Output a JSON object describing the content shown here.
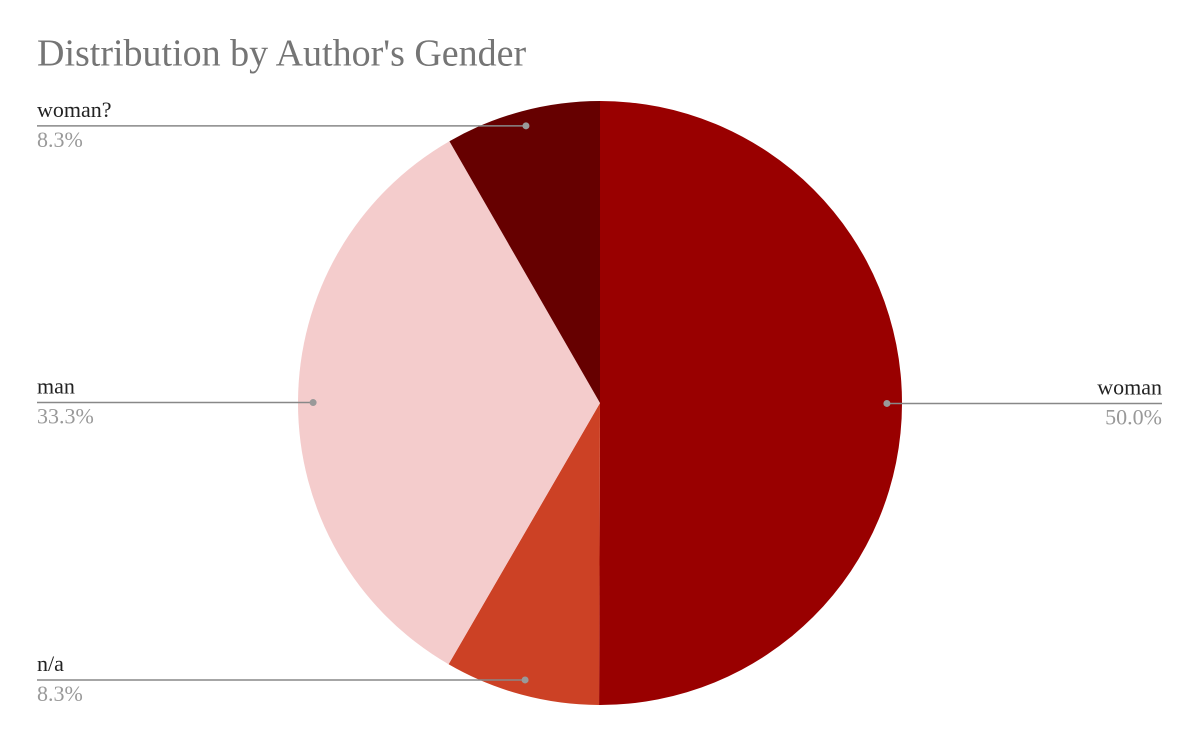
{
  "chart_data": {
    "type": "pie",
    "title": "Distribution by Author's Gender",
    "categories": [
      "woman",
      "n/a",
      "man",
      "woman?"
    ],
    "values": [
      50,
      8.3,
      33.3,
      8.3
    ],
    "value_labels": [
      "50.0%",
      "8.3%",
      "33.3%",
      "8.3%"
    ],
    "colors": [
      "#990000",
      "#cc4125",
      "#f4cccc",
      "#660000"
    ]
  }
}
